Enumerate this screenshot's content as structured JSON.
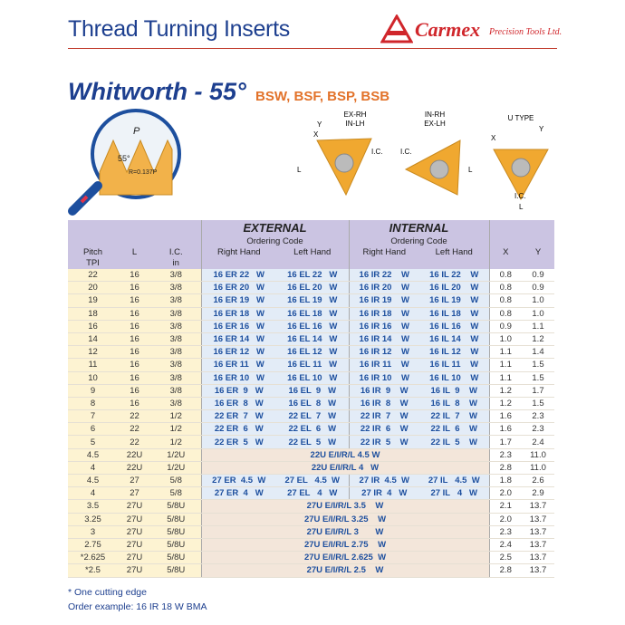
{
  "header": {
    "title": "Thread Turning Inserts",
    "brand": "Carmex",
    "brand_sub": "Precision Tools Ltd."
  },
  "section": {
    "title": "Whitworth - 55°",
    "subtitle": "BSW, BSF, BSP, BSB"
  },
  "diagram": {
    "pitch": "P",
    "angle": "55°",
    "radius": "R=0.137P",
    "insert_1": [
      "EX-RH",
      "IN-LH"
    ],
    "insert_2": [
      "IN-RH",
      "EX-LH"
    ],
    "insert_3": "U TYPE",
    "ic": "I.C.",
    "l": "L",
    "x": "X",
    "y": "Y"
  },
  "table": {
    "header": {
      "pitch": "Pitch",
      "tpi": "TPI",
      "l": "L",
      "ic": "I.C.",
      "ic_unit": "in",
      "external": "EXTERNAL",
      "internal": "INTERNAL",
      "ordering_code": "Ordering Code",
      "right_hand": "Right Hand",
      "left_hand": "Left Hand",
      "x": "X",
      "y": "Y"
    },
    "rows": [
      {
        "pitch": "22",
        "l": "16",
        "ic": "3/8",
        "ext_rh": "16 ER 22   W",
        "ext_lh": "16 EL 22   W",
        "int_rh": "16 IR 22    W",
        "int_lh": "16 IL 22    W",
        "x": "0.8",
        "y": "0.9"
      },
      {
        "pitch": "20",
        "l": "16",
        "ic": "3/8",
        "ext_rh": "16 ER 20   W",
        "ext_lh": "16 EL 20   W",
        "int_rh": "16 IR 20    W",
        "int_lh": "16 IL 20    W",
        "x": "0.8",
        "y": "0.9"
      },
      {
        "pitch": "19",
        "l": "16",
        "ic": "3/8",
        "ext_rh": "16 ER 19   W",
        "ext_lh": "16 EL 19   W",
        "int_rh": "16 IR 19    W",
        "int_lh": "16 IL 19    W",
        "x": "0.8",
        "y": "1.0"
      },
      {
        "pitch": "18",
        "l": "16",
        "ic": "3/8",
        "ext_rh": "16 ER 18   W",
        "ext_lh": "16 EL 18   W",
        "int_rh": "16 IR 18    W",
        "int_lh": "16 IL 18    W",
        "x": "0.8",
        "y": "1.0"
      },
      {
        "pitch": "16",
        "l": "16",
        "ic": "3/8",
        "ext_rh": "16 ER 16   W",
        "ext_lh": "16 EL 16   W",
        "int_rh": "16 IR 16    W",
        "int_lh": "16 IL 16    W",
        "x": "0.9",
        "y": "1.1"
      },
      {
        "pitch": "14",
        "l": "16",
        "ic": "3/8",
        "ext_rh": "16 ER 14   W",
        "ext_lh": "16 EL 14   W",
        "int_rh": "16 IR 14    W",
        "int_lh": "16 IL 14    W",
        "x": "1.0",
        "y": "1.2"
      },
      {
        "pitch": "12",
        "l": "16",
        "ic": "3/8",
        "ext_rh": "16 ER 12   W",
        "ext_lh": "16 EL 12   W",
        "int_rh": "16 IR 12    W",
        "int_lh": "16 IL 12    W",
        "x": "1.1",
        "y": "1.4"
      },
      {
        "pitch": "11",
        "l": "16",
        "ic": "3/8",
        "ext_rh": "16 ER 11   W",
        "ext_lh": "16 EL 11   W",
        "int_rh": "16 IR 11    W",
        "int_lh": "16 IL 11    W",
        "x": "1.1",
        "y": "1.5"
      },
      {
        "pitch": "10",
        "l": "16",
        "ic": "3/8",
        "ext_rh": "16 ER 10   W",
        "ext_lh": "16 EL 10   W",
        "int_rh": "16 IR 10    W",
        "int_lh": "16 IL 10    W",
        "x": "1.1",
        "y": "1.5"
      },
      {
        "pitch": "9",
        "l": "16",
        "ic": "3/8",
        "ext_rh": "16 ER  9   W",
        "ext_lh": "16 EL  9   W",
        "int_rh": "16 IR  9    W",
        "int_lh": "16 IL  9    W",
        "x": "1.2",
        "y": "1.7"
      },
      {
        "pitch": "8",
        "l": "16",
        "ic": "3/8",
        "ext_rh": "16 ER  8   W",
        "ext_lh": "16 EL  8   W",
        "int_rh": "16 IR  8    W",
        "int_lh": "16 IL  8    W",
        "x": "1.2",
        "y": "1.5"
      },
      {
        "pitch": "7",
        "l": "22",
        "ic": "1/2",
        "ext_rh": "22 ER  7   W",
        "ext_lh": "22 EL  7   W",
        "int_rh": "22 IR  7    W",
        "int_lh": "22 IL  7    W",
        "x": "1.6",
        "y": "2.3"
      },
      {
        "pitch": "6",
        "l": "22",
        "ic": "1/2",
        "ext_rh": "22 ER  6   W",
        "ext_lh": "22 EL  6   W",
        "int_rh": "22 IR  6    W",
        "int_lh": "22 IL  6    W",
        "x": "1.6",
        "y": "2.3"
      },
      {
        "pitch": "5",
        "l": "22",
        "ic": "1/2",
        "ext_rh": "22 ER  5   W",
        "ext_lh": "22 EL  5   W",
        "int_rh": "22 IR  5    W",
        "int_lh": "22 IL  5    W",
        "x": "1.7",
        "y": "2.4"
      },
      {
        "pitch": "4.5",
        "l": "22U",
        "ic": "1/2U",
        "code": "22U E/I/R/L 4.5 W",
        "x": "2.3",
        "y": "11.0"
      },
      {
        "pitch": "4",
        "l": "22U",
        "ic": "1/2U",
        "code": "22U E/I/R/L 4   W",
        "x": "2.8",
        "y": "11.0"
      },
      {
        "pitch": "4.5",
        "l": "27",
        "ic": "5/8",
        "ext_rh": "27 ER  4.5  W",
        "ext_lh": "27 EL   4.5  W",
        "int_rh": "27 IR  4.5  W",
        "int_lh": "27 IL   4.5  W",
        "x": "1.8",
        "y": "2.6"
      },
      {
        "pitch": "4",
        "l": "27",
        "ic": "5/8",
        "ext_rh": "27 ER  4   W",
        "ext_lh": "27 EL   4   W",
        "int_rh": "27 IR  4   W",
        "int_lh": "27 IL   4   W",
        "x": "2.0",
        "y": "2.9"
      },
      {
        "pitch": "3.5",
        "l": "27U",
        "ic": "5/8U",
        "code": "27U E/I/R/L 3.5    W",
        "x": "2.1",
        "y": "13.7"
      },
      {
        "pitch": "3.25",
        "l": "27U",
        "ic": "5/8U",
        "code": "27U E/I/R/L 3.25    W",
        "x": "2.0",
        "y": "13.7"
      },
      {
        "pitch": "3",
        "l": "27U",
        "ic": "5/8U",
        "code": "27U E/I/R/L 3       W",
        "x": "2.3",
        "y": "13.7"
      },
      {
        "pitch": "2.75",
        "l": "27U",
        "ic": "5/8U",
        "code": "27U E/I/R/L 2.75    W",
        "x": "2.4",
        "y": "13.7"
      },
      {
        "pitch": "*2.625",
        "l": "27U",
        "ic": "5/8U",
        "code": "27U E/I/R/L 2.625  W",
        "x": "2.5",
        "y": "13.7"
      },
      {
        "pitch": "*2.5",
        "l": "27U",
        "ic": "5/8U",
        "code": "27U E/I/R/L 2.5    W",
        "x": "2.8",
        "y": "13.7"
      }
    ]
  },
  "footnotes": [
    "* One cutting edge",
    "Order example: 16 IR 18 W BMA"
  ]
}
